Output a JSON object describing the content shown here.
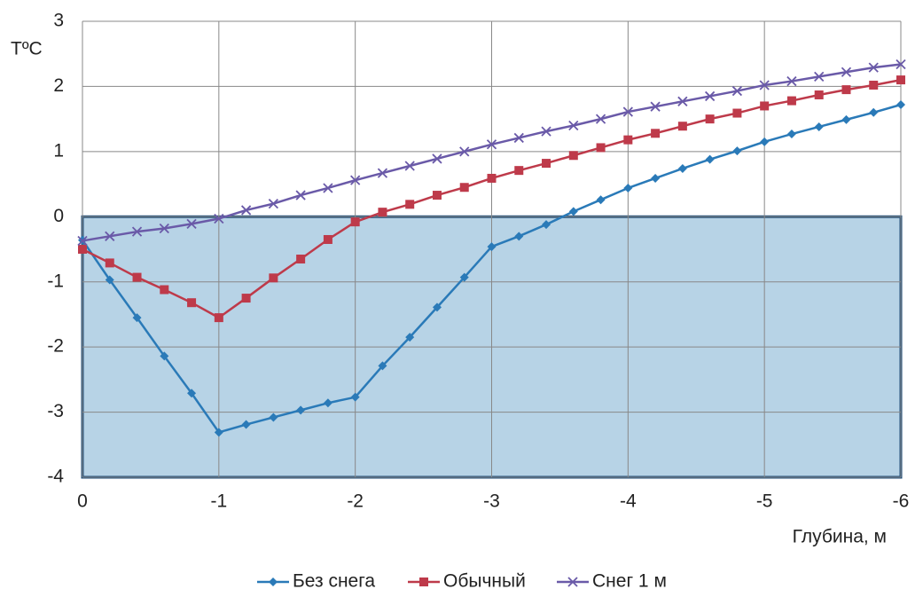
{
  "chart_data": {
    "type": "line",
    "y_label": "TºC",
    "x_label": "Глубина, м",
    "x": [
      0,
      -0.2,
      -0.4,
      -0.6,
      -0.8,
      -1,
      -1.2,
      -1.4,
      -1.6,
      -1.8,
      -2,
      -2.2,
      -2.4,
      -2.6,
      -2.8,
      -3,
      -3.2,
      -3.4,
      -3.6,
      -3.8,
      -4,
      -4.2,
      -4.4,
      -4.6,
      -4.8,
      -5,
      -5.2,
      -5.4,
      -5.6,
      -5.8,
      -6
    ],
    "xlim": [
      0,
      -6
    ],
    "xticks": [
      0,
      -1,
      -2,
      -3,
      -4,
      -5,
      -6
    ],
    "ylim": [
      -4,
      3
    ],
    "yticks": [
      -4,
      -3,
      -2,
      -1,
      0,
      1,
      2,
      3
    ],
    "grid": true,
    "shaded_band": {
      "from": 0,
      "to": -4,
      "color": "#b7d3e6",
      "border": "#1f4e79"
    },
    "legend": "bottom",
    "series": [
      {
        "name": "Без снега",
        "color": "#2a7ab8",
        "marker": "diamond",
        "values": [
          -0.36,
          -0.97,
          -1.55,
          -2.14,
          -2.71,
          -3.31,
          -3.19,
          -3.08,
          -2.97,
          -2.86,
          -2.77,
          -2.29,
          -1.85,
          -1.39,
          -0.93,
          -0.46,
          -0.3,
          -0.12,
          0.08,
          0.26,
          0.44,
          0.59,
          0.74,
          0.88,
          1.01,
          1.15,
          1.27,
          1.38,
          1.49,
          1.6,
          1.72
        ]
      },
      {
        "name": "Обычный",
        "color": "#be3a4a",
        "marker": "square",
        "values": [
          -0.5,
          -0.71,
          -0.93,
          -1.12,
          -1.32,
          -1.55,
          -1.25,
          -0.94,
          -0.65,
          -0.35,
          -0.08,
          0.07,
          0.19,
          0.33,
          0.45,
          0.59,
          0.71,
          0.82,
          0.94,
          1.06,
          1.18,
          1.28,
          1.39,
          1.5,
          1.59,
          1.7,
          1.78,
          1.87,
          1.95,
          2.02,
          2.1
        ]
      },
      {
        "name": "Снег 1 м",
        "color": "#6a5aa8",
        "marker": "x",
        "values": [
          -0.37,
          -0.3,
          -0.23,
          -0.18,
          -0.11,
          -0.03,
          0.1,
          0.2,
          0.33,
          0.44,
          0.56,
          0.67,
          0.78,
          0.89,
          1.0,
          1.11,
          1.21,
          1.31,
          1.4,
          1.5,
          1.61,
          1.69,
          1.77,
          1.85,
          1.93,
          2.02,
          2.08,
          2.15,
          2.22,
          2.29,
          2.34
        ]
      }
    ]
  }
}
